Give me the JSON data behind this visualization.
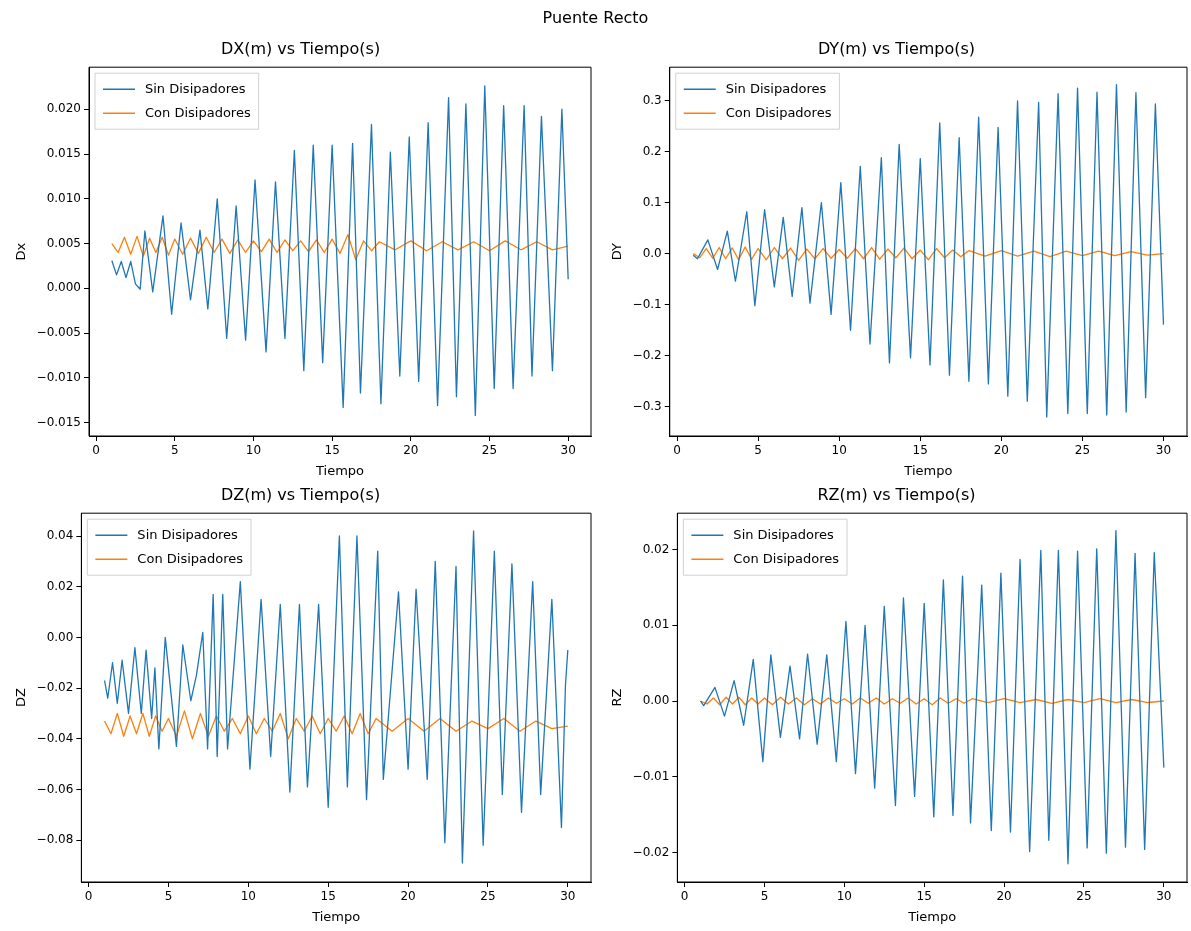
{
  "chart_data": [
    {
      "type": "line",
      "title": "DX(m) vs Tiempo(s)",
      "xlabel": "Tiempo",
      "ylabel": "Dx",
      "annotations": [
        "Puente Recto"
      ],
      "legend": "top left",
      "marker": "none",
      "line_style": "solid",
      "grid": false,
      "xlim": [
        -0.45,
        31.45
      ],
      "xticks": [
        0,
        5,
        10,
        15,
        20,
        25,
        30
      ],
      "ylim": [
        -0.0165,
        0.0247
      ],
      "yticks": [
        {
          "value": -0.015,
          "label": "−0.015"
        },
        {
          "value": -0.01,
          "label": "−0.010"
        },
        {
          "value": -0.005,
          "label": "−0.005"
        },
        {
          "value": 0,
          "label": "0.000"
        },
        {
          "value": 0.005,
          "label": "0.005"
        },
        {
          "value": 0.01,
          "label": "0.010"
        },
        {
          "value": 0.015,
          "label": "0.015"
        },
        {
          "value": 0.02,
          "label": "0.020"
        }
      ],
      "series": [
        {
          "name": "Sin Disipadores",
          "color": "#1f77b4",
          "x": [
            1.0,
            1.3,
            1.6,
            1.9,
            2.2,
            2.5,
            2.8,
            3.1,
            3.6,
            4.25,
            4.8,
            5.4,
            6.0,
            6.6,
            7.1,
            7.7,
            8.3,
            8.9,
            9.5,
            10.1,
            10.8,
            11.4,
            12.0,
            12.6,
            13.2,
            13.8,
            14.4,
            15.0,
            15.7,
            16.3,
            16.8,
            17.5,
            18.1,
            18.7,
            19.3,
            19.9,
            20.5,
            21.1,
            21.7,
            22.4,
            22.9,
            23.5,
            24.1,
            24.7,
            25.3,
            25.9,
            26.5,
            27.2,
            27.7,
            28.3,
            29.0,
            29.6,
            30.0
          ],
          "values": [
            0.0031,
            0.0015,
            0.003,
            0.0012,
            0.003,
            0.0005,
            -0.0001,
            0.0064,
            -0.0004,
            0.0081,
            -0.0029,
            0.0073,
            -0.0013,
            0.0065,
            -0.0023,
            0.01,
            -0.0056,
            0.0092,
            -0.0058,
            0.0121,
            -0.0071,
            0.0119,
            -0.0056,
            0.0154,
            -0.0092,
            0.016,
            -0.0083,
            0.016,
            -0.0133,
            0.0162,
            -0.0117,
            0.0183,
            -0.0129,
            0.0152,
            -0.0098,
            0.0169,
            -0.0104,
            0.0185,
            -0.0131,
            0.0213,
            -0.0121,
            0.0206,
            -0.0142,
            0.0226,
            -0.0112,
            0.0204,
            -0.0112,
            0.0204,
            -0.0098,
            0.0192,
            -0.0092,
            0.02,
            0.001
          ]
        },
        {
          "name": "Con Disipadores",
          "color": "#ff7f0e",
          "x": [
            1,
            1.4,
            1.8,
            2.2,
            2.6,
            3,
            3.4,
            3.8,
            4.2,
            4.6,
            5,
            5.5,
            6,
            6.5,
            7,
            7.5,
            8,
            8.5,
            9,
            9.5,
            10,
            10.5,
            11,
            11.5,
            12,
            12.5,
            13,
            13.5,
            14,
            14.5,
            15,
            15.5,
            16,
            16.5,
            17,
            17.5,
            18,
            19,
            20,
            21,
            22,
            23,
            24,
            25,
            26,
            27,
            28,
            29,
            30
          ],
          "values": [
            0.005,
            0.004,
            0.0057,
            0.0038,
            0.0058,
            0.0036,
            0.0056,
            0.004,
            0.0057,
            0.0037,
            0.0055,
            0.0038,
            0.0056,
            0.0039,
            0.0057,
            0.004,
            0.0055,
            0.0039,
            0.0054,
            0.004,
            0.0053,
            0.0041,
            0.0055,
            0.004,
            0.0054,
            0.0042,
            0.0053,
            0.0041,
            0.0054,
            0.004,
            0.0055,
            0.0039,
            0.006,
            0.0032,
            0.0053,
            0.0042,
            0.0052,
            0.0043,
            0.0053,
            0.0042,
            0.0052,
            0.0043,
            0.0052,
            0.0042,
            0.0053,
            0.0043,
            0.0052,
            0.0043,
            0.0047
          ]
        }
      ]
    },
    {
      "type": "line",
      "title": "DY(m) vs Tiempo(s)",
      "xlabel": "Tiempo",
      "ylabel": "DY",
      "legend": "top left",
      "marker": "none",
      "line_style": "solid",
      "grid": false,
      "xlim": [
        -0.45,
        31.45
      ],
      "xticks": [
        0,
        5,
        10,
        15,
        20,
        25,
        30
      ],
      "ylim": [
        -0.357,
        0.365
      ],
      "yticks": [
        {
          "value": -0.3,
          "label": "−0.3"
        },
        {
          "value": -0.2,
          "label": "−0.2"
        },
        {
          "value": -0.1,
          "label": "−0.1"
        },
        {
          "value": 0,
          "label": "0.0"
        },
        {
          "value": 0.1,
          "label": "0.1"
        },
        {
          "value": 0.2,
          "label": "0.2"
        },
        {
          "value": 0.3,
          "label": "0.3"
        }
      ],
      "series": [
        {
          "name": "Sin Disipadores",
          "color": "#1f77b4",
          "x": [
            1.0,
            1.26,
            1.9,
            2.5,
            3.1,
            3.6,
            4.3,
            4.8,
            5.4,
            6.0,
            6.55,
            7.1,
            7.7,
            8.2,
            8.9,
            9.5,
            10.1,
            10.7,
            11.3,
            11.9,
            12.6,
            13.1,
            13.7,
            14.4,
            15.0,
            15.6,
            16.2,
            16.8,
            17.4,
            18.0,
            18.6,
            19.2,
            19.8,
            20.4,
            21.0,
            21.6,
            22.3,
            22.8,
            23.5,
            24.1,
            24.7,
            25.3,
            25.9,
            26.5,
            27.1,
            27.7,
            28.3,
            28.9,
            29.5,
            30.0
          ],
          "values": [
            -0.003,
            -0.01,
            0.027,
            -0.031,
            0.044,
            -0.054,
            0.082,
            -0.102,
            0.086,
            -0.065,
            0.071,
            -0.084,
            0.09,
            -0.097,
            0.1,
            -0.119,
            0.139,
            -0.15,
            0.171,
            -0.177,
            0.188,
            -0.214,
            0.214,
            -0.204,
            0.186,
            -0.218,
            0.256,
            -0.238,
            0.227,
            -0.25,
            0.267,
            -0.255,
            0.247,
            -0.279,
            0.299,
            -0.289,
            0.296,
            -0.32,
            0.313,
            -0.313,
            0.324,
            -0.313,
            0.316,
            -0.316,
            0.331,
            -0.31,
            0.315,
            -0.282,
            0.293,
            -0.139
          ]
        },
        {
          "name": "Con Disipadores",
          "color": "#ff7f0e",
          "x": [
            1,
            1.4,
            1.8,
            2.2,
            2.6,
            3,
            3.4,
            3.8,
            4.2,
            4.6,
            5,
            5.5,
            6,
            6.5,
            7,
            7.5,
            8,
            8.5,
            9,
            9.5,
            10,
            10.5,
            11,
            11.5,
            12,
            12.5,
            13,
            13.5,
            14,
            14.5,
            15,
            15.5,
            16,
            16.5,
            17,
            17.5,
            18,
            19,
            20,
            21,
            22,
            23,
            24,
            25,
            26,
            27,
            28,
            29,
            30
          ],
          "values": [
            0.0,
            -0.008,
            0.01,
            -0.009,
            0.012,
            -0.01,
            0.011,
            -0.012,
            0.013,
            -0.011,
            0.01,
            -0.012,
            0.012,
            -0.01,
            0.011,
            -0.013,
            0.009,
            -0.01,
            0.01,
            -0.009,
            0.008,
            -0.009,
            0.01,
            -0.01,
            0.012,
            -0.011,
            0.009,
            -0.008,
            0.011,
            -0.01,
            0.007,
            -0.012,
            0.01,
            -0.008,
            0.007,
            -0.006,
            0.006,
            -0.005,
            0.006,
            -0.005,
            0.005,
            -0.006,
            0.005,
            -0.004,
            0.005,
            -0.004,
            0.004,
            -0.003,
            0.0
          ]
        }
      ]
    },
    {
      "type": "line",
      "title": "DZ(m) vs Tiempo(s)",
      "xlabel": "Tiempo",
      "ylabel": "DZ",
      "legend": "top left",
      "marker": "none",
      "line_style": "solid",
      "grid": false,
      "xlim": [
        -0.45,
        31.45
      ],
      "xticks": [
        0,
        5,
        10,
        15,
        20,
        25,
        30
      ],
      "ylim": [
        -0.0965,
        0.049
      ],
      "yticks": [
        {
          "value": -0.08,
          "label": "−0.08"
        },
        {
          "value": -0.06,
          "label": "−0.06"
        },
        {
          "value": -0.04,
          "label": "−0.04"
        },
        {
          "value": -0.02,
          "label": "−0.02"
        },
        {
          "value": 0,
          "label": "0.00"
        },
        {
          "value": 0.02,
          "label": "0.02"
        },
        {
          "value": 0.04,
          "label": "0.04"
        }
      ],
      "series": [
        {
          "name": "Sin Disipadores",
          "color": "#1f77b4",
          "x": [
            1.0,
            1.2,
            1.5,
            1.8,
            2.1,
            2.5,
            2.9,
            3.3,
            3.6,
            3.95,
            4.15,
            4.4,
            4.8,
            5.5,
            5.9,
            6.4,
            6.75,
            7.15,
            7.45,
            7.8,
            8.05,
            8.4,
            8.7,
            9.5,
            10.1,
            10.8,
            11.4,
            12.0,
            12.6,
            13.2,
            13.7,
            14.4,
            15.0,
            15.7,
            16.2,
            16.8,
            17.4,
            18.1,
            18.45,
            19.4,
            20.0,
            20.5,
            21.2,
            21.7,
            22.3,
            23.0,
            23.4,
            24.1,
            24.7,
            25.4,
            25.9,
            26.5,
            27.1,
            27.8,
            28.3,
            29.0,
            29.6,
            29.85,
            30.0
          ],
          "values": [
            -0.017,
            -0.024,
            -0.01,
            -0.026,
            -0.009,
            -0.03,
            -0.004,
            -0.03,
            -0.005,
            -0.032,
            -0.012,
            -0.044,
            0.0,
            -0.043,
            -0.003,
            -0.025,
            -0.015,
            0.002,
            -0.044,
            0.017,
            -0.047,
            0.017,
            -0.044,
            0.022,
            -0.052,
            0.015,
            -0.047,
            0.013,
            -0.061,
            0.013,
            -0.059,
            0.013,
            -0.067,
            0.04,
            -0.059,
            0.04,
            -0.064,
            0.034,
            -0.056,
            0.018,
            -0.052,
            0.019,
            -0.056,
            0.03,
            -0.081,
            0.028,
            -0.089,
            0.042,
            -0.082,
            0.034,
            -0.062,
            0.029,
            -0.069,
            0.022,
            -0.062,
            0.015,
            -0.075,
            -0.019,
            -0.005
          ]
        },
        {
          "name": "Con Disipadores",
          "color": "#ff7f0e",
          "x": [
            1,
            1.4,
            1.8,
            2.2,
            2.6,
            3,
            3.4,
            3.8,
            4.2,
            4.6,
            5,
            5.5,
            6,
            6.5,
            7,
            7.5,
            8,
            8.5,
            9,
            9.5,
            10,
            10.5,
            11,
            11.5,
            12,
            12.5,
            13,
            13.5,
            14,
            14.5,
            15,
            15.5,
            16,
            16.5,
            17,
            17.5,
            18,
            19,
            20,
            21,
            22,
            23,
            24,
            25,
            26,
            27,
            28,
            29,
            30
          ],
          "values": [
            -0.033,
            -0.038,
            -0.03,
            -0.039,
            -0.031,
            -0.038,
            -0.03,
            -0.039,
            -0.031,
            -0.037,
            -0.032,
            -0.039,
            -0.029,
            -0.04,
            -0.03,
            -0.039,
            -0.031,
            -0.037,
            -0.032,
            -0.038,
            -0.031,
            -0.038,
            -0.032,
            -0.037,
            -0.03,
            -0.04,
            -0.032,
            -0.037,
            -0.031,
            -0.038,
            -0.032,
            -0.037,
            -0.031,
            -0.038,
            -0.03,
            -0.038,
            -0.032,
            -0.037,
            -0.032,
            -0.037,
            -0.032,
            -0.037,
            -0.033,
            -0.036,
            -0.032,
            -0.037,
            -0.033,
            -0.036,
            -0.035
          ]
        }
      ]
    },
    {
      "type": "line",
      "title": "RZ(m) vs Tiempo(s)",
      "xlabel": "Tiempo",
      "ylabel": "RZ",
      "legend": "top left",
      "marker": "none",
      "line_style": "solid",
      "grid": false,
      "xlim": [
        -0.45,
        31.45
      ],
      "xticks": [
        0,
        5,
        10,
        15,
        20,
        25,
        30
      ],
      "ylim": [
        -0.0239,
        0.0248
      ],
      "yticks": [
        {
          "value": -0.02,
          "label": "−0.02"
        },
        {
          "value": -0.01,
          "label": "−0.01"
        },
        {
          "value": 0,
          "label": "0.00"
        },
        {
          "value": 0.01,
          "label": "0.01"
        },
        {
          "value": 0.02,
          "label": "0.02"
        }
      ],
      "series": [
        {
          "name": "Sin Disipadores",
          "color": "#1f77b4",
          "x": [
            1.0,
            1.2,
            1.9,
            2.5,
            3.1,
            3.7,
            4.3,
            4.9,
            5.4,
            6.0,
            6.6,
            7.2,
            7.7,
            8.3,
            8.9,
            9.5,
            10.1,
            10.7,
            11.3,
            11.9,
            12.5,
            13.2,
            13.7,
            14.4,
            15.0,
            15.6,
            16.2,
            16.8,
            17.4,
            17.9,
            18.6,
            19.2,
            19.8,
            20.4,
            21.0,
            21.6,
            22.3,
            22.8,
            23.4,
            24.0,
            24.6,
            25.2,
            25.8,
            26.4,
            27.0,
            27.6,
            28.2,
            28.8,
            29.4,
            30.0
          ],
          "values": [
            0.0,
            -0.0006,
            0.0018,
            -0.002,
            0.0027,
            -0.0032,
            0.0055,
            -0.008,
            0.0061,
            -0.0048,
            0.0046,
            -0.005,
            0.0062,
            -0.0057,
            0.0061,
            -0.008,
            0.0105,
            -0.0096,
            0.01,
            -0.0115,
            0.0125,
            -0.0138,
            0.0136,
            -0.0126,
            0.0129,
            -0.0153,
            0.016,
            -0.0151,
            0.0165,
            -0.0161,
            0.0153,
            -0.0171,
            0.0169,
            -0.0173,
            0.0187,
            -0.0199,
            0.0199,
            -0.0184,
            0.0199,
            -0.0215,
            0.0198,
            -0.0194,
            0.0201,
            -0.0201,
            0.0225,
            -0.0193,
            0.0195,
            -0.0196,
            0.0196,
            -0.0088
          ]
        },
        {
          "name": "Con Disipadores",
          "color": "#ff7f0e",
          "x": [
            1,
            1.4,
            1.8,
            2.2,
            2.6,
            3,
            3.4,
            3.8,
            4.2,
            4.6,
            5,
            5.5,
            6,
            6.5,
            7,
            7.5,
            8,
            8.5,
            9,
            9.5,
            10,
            10.5,
            11,
            11.5,
            12,
            12.5,
            13,
            13.5,
            14,
            14.5,
            15,
            15.5,
            16,
            16.5,
            17,
            17.5,
            18,
            19,
            20,
            21,
            22,
            23,
            24,
            25,
            26,
            27,
            28,
            29,
            30
          ],
          "values": [
            0.0,
            -0.0004,
            0.0004,
            -0.0005,
            0.0005,
            -0.0004,
            0.0005,
            -0.0005,
            0.0004,
            -0.0004,
            0.0004,
            -0.0005,
            0.0005,
            -0.0004,
            0.0004,
            -0.0005,
            0.0003,
            -0.0004,
            0.0004,
            -0.0003,
            0.0003,
            -0.0004,
            0.0004,
            -0.0003,
            0.0004,
            -0.0004,
            0.0003,
            -0.0003,
            0.0004,
            -0.0004,
            0.0003,
            -0.0005,
            0.0004,
            -0.0003,
            0.0003,
            -0.0003,
            0.0003,
            -0.0002,
            0.0003,
            -0.0002,
            0.0002,
            -0.0003,
            0.0002,
            -0.0002,
            0.0003,
            -0.0002,
            0.0002,
            -0.0002,
            0.0
          ]
        }
      ]
    }
  ]
}
